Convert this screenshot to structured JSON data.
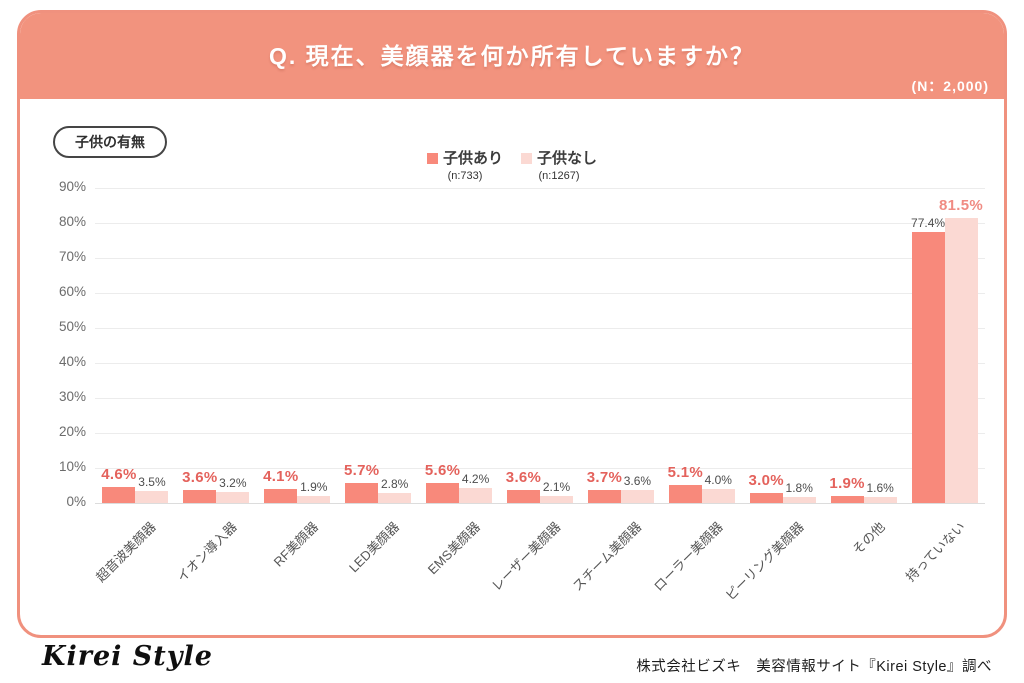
{
  "header": {
    "title": "Q. 現在、美顔器を何か所有していますか？",
    "sample_size": "(N：2,000)"
  },
  "filter_badge": {
    "label": "子供の有無"
  },
  "legend": [
    {
      "label": "子供あり",
      "sub": "(n:733)",
      "color": "#f8897b"
    },
    {
      "label": "子供なし",
      "sub": "(n:1267)",
      "color": "#fbd9d3"
    }
  ],
  "chart_data": {
    "type": "bar",
    "title": "Q. 現在、美顔器を何か所有していますか？",
    "categories": [
      "超音波美顔器",
      "イオン導入器",
      "RF美顔器",
      "LED美顔器",
      "EMS美顔器",
      "レーザー美顔器",
      "スチーム美顔器",
      "ローラー美顔器",
      "ピーリング美顔器",
      "その他",
      "持っていない"
    ],
    "series": [
      {
        "name": "子供あり",
        "n": 733,
        "color": "#f8897b",
        "values": [
          4.6,
          3.6,
          4.1,
          5.7,
          5.6,
          3.6,
          3.7,
          5.1,
          3.0,
          1.9,
          77.4
        ]
      },
      {
        "name": "子供なし",
        "n": 1267,
        "color": "#fbd9d3",
        "values": [
          3.5,
          3.2,
          1.9,
          2.8,
          4.2,
          2.1,
          3.6,
          4.0,
          1.8,
          1.6,
          81.5
        ]
      }
    ],
    "emphasized_series_per_category": [
      0,
      0,
      0,
      0,
      0,
      0,
      0,
      0,
      0,
      0,
      1
    ],
    "emphasis_colors": [
      "#e4625c",
      "#f08b83"
    ],
    "plain_label_color": "#4d4d4d",
    "y_ticks": [
      "90%",
      "80%",
      "70%",
      "60%",
      "50%",
      "40%",
      "30%",
      "20%",
      "10%",
      "0%"
    ],
    "ylim": [
      0,
      90
    ],
    "grid": true,
    "legend_position": "top-center",
    "xlabel": "",
    "ylabel": ""
  },
  "footer": {
    "logo": "Kirei Style",
    "credit": "株式会社ビズキ　美容情報サイト『Kirei Style』調べ"
  }
}
